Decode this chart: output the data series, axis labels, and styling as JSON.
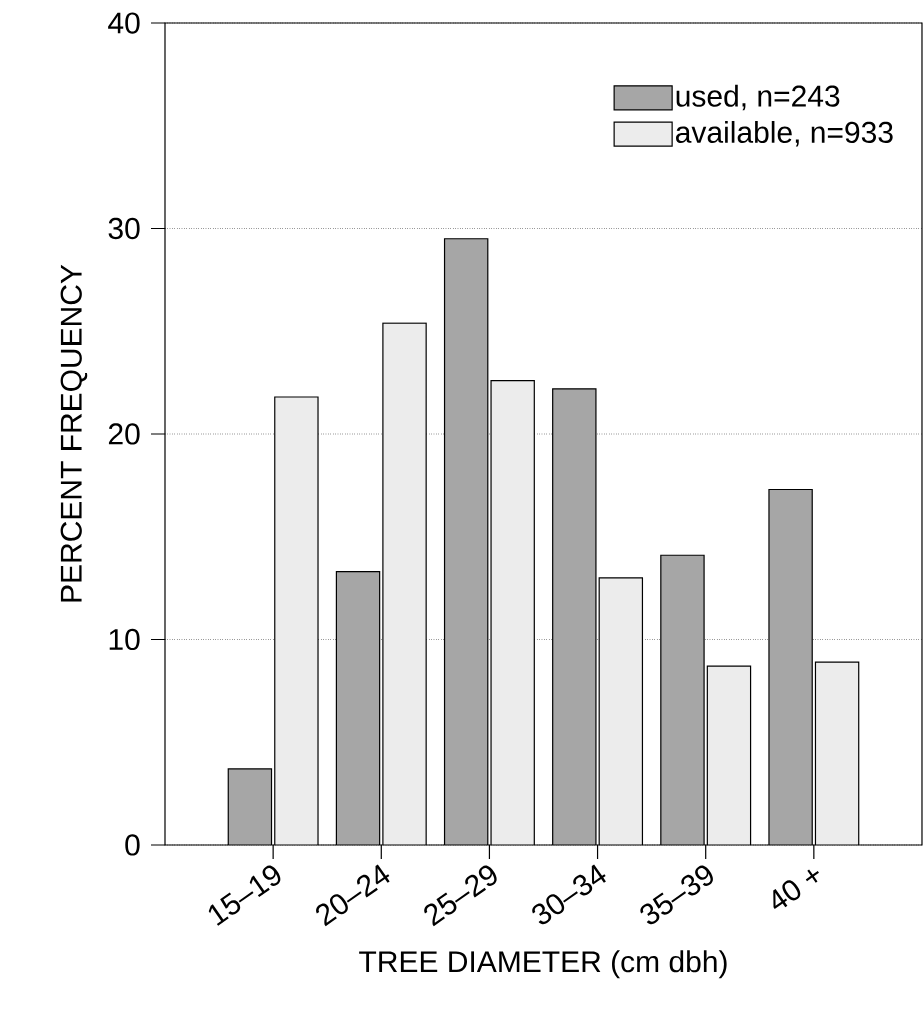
{
  "chart_data": {
    "type": "bar",
    "xlabel": "TREE DIAMETER (cm dbh)",
    "ylabel": "PERCENT FREQUENCY",
    "categories": [
      "15–19",
      "20–24",
      "25–29",
      "30–34",
      "35–39",
      "40 +"
    ],
    "series": [
      {
        "name": "used, n=243",
        "color": "#a6a6a6",
        "values": [
          3.7,
          13.3,
          29.5,
          22.2,
          14.1,
          17.3
        ]
      },
      {
        "name": "available, n=933",
        "color": "#ececec",
        "values": [
          21.8,
          25.4,
          22.6,
          13.0,
          8.7,
          8.9
        ]
      }
    ],
    "ylim": [
      0,
      40
    ],
    "yticks": [
      0,
      10,
      20,
      30,
      40
    ],
    "grid": "y",
    "legend": "top right"
  }
}
